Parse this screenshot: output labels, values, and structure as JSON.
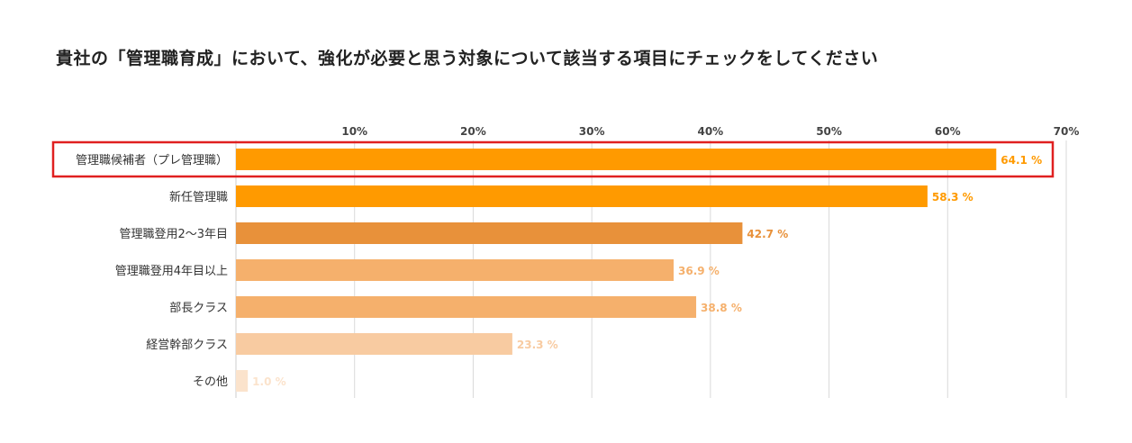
{
  "title": "貴社の「管理職育成」において、強化が必要と思う対象について該当する項目にチェックをしてください",
  "chart_data": {
    "type": "bar",
    "orientation": "horizontal",
    "xlim": [
      0,
      70
    ],
    "ticks": [
      10,
      20,
      30,
      40,
      50,
      60,
      70
    ],
    "tick_labels": [
      "10%",
      "20%",
      "30%",
      "40%",
      "50%",
      "60%",
      "70%"
    ],
    "categories": [
      "管理職候補者（プレ管理職）",
      "新任管理職",
      "管理職登用2〜3年目",
      "管理職登用4年目以上",
      "部長クラス",
      "経営幹部クラス",
      "その他"
    ],
    "values": [
      64.1,
      58.3,
      42.7,
      36.9,
      38.8,
      23.3,
      1.0
    ],
    "value_labels": [
      "64.1 %",
      "58.3 %",
      "42.7 %",
      "36.9 %",
      "38.8 %",
      "23.3 %",
      "1.0 %"
    ],
    "bar_colors": [
      "#ff9a00",
      "#ff9a00",
      "#e8913a",
      "#f5b06c",
      "#f5b06c",
      "#f8cba1",
      "#fbe3cc"
    ],
    "label_colors": [
      "#ff9a00",
      "#ff9a00",
      "#e8913a",
      "#f5b06c",
      "#f5b06c",
      "#f8cba1",
      "#fbe3cc"
    ],
    "highlighted_index": 0,
    "highlight_color": "#e02020",
    "grid": true
  }
}
